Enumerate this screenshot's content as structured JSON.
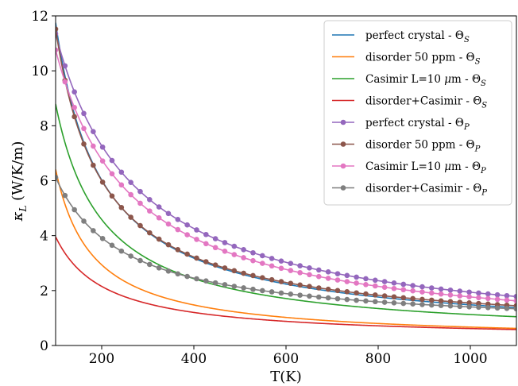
{
  "chart_data": {
    "type": "line",
    "xlabel": "T(K)",
    "ylabel": "κ",
    "ylabel_sub": "L",
    "ylabel_units": " (W/K/m)",
    "xlim": [
      100,
      1100
    ],
    "ylim": [
      0,
      12
    ],
    "xticks": [
      "200",
      "400",
      "600",
      "800",
      "1000"
    ],
    "yticks": [
      "0",
      "2",
      "4",
      "6",
      "8",
      "10",
      "12"
    ],
    "legend_position": "top-right",
    "series": [
      {
        "name": "perfect crystal - ",
        "symbol": "Θ",
        "sub": "S",
        "color": "#1f77b4",
        "markers": false,
        "A": 1130,
        "B": -0.9,
        "C": 0.35
      },
      {
        "name": "disorder 50 ppm - ",
        "symbol": "Θ",
        "sub": "S",
        "color": "#ff7f0e",
        "markers": false,
        "A": 500,
        "B": -20,
        "C": 0.16
      },
      {
        "name": "Casimir L=10 ",
        "mu": "μ",
        "name_tail": "m - ",
        "symbol": "Θ",
        "sub": "S",
        "color": "#2ca02c",
        "markers": false,
        "A": 880,
        "B": 3,
        "C": 0.25
      },
      {
        "name": "disorder+Casimir - ",
        "symbol": "Θ",
        "sub": "S",
        "color": "#d62728",
        "markers": false,
        "A": 400,
        "B": 7,
        "C": 0.22
      },
      {
        "name": "perfect crystal - ",
        "symbol": "Θ",
        "sub": "P",
        "color": "#9467bd",
        "markers": true,
        "A": 1980,
        "B": 76,
        "C": 0.1
      },
      {
        "name": "disorder 50 ppm - ",
        "symbol": "Θ",
        "sub": "P",
        "color": "#8c564b",
        "markers": true,
        "A": 1120,
        "B": 1,
        "C": 0.43
      },
      {
        "name": "Casimir L=10 ",
        "mu": "μ",
        "name_tail": "m - ",
        "symbol": "Θ",
        "sub": "P",
        "color": "#e377c2",
        "markers": true,
        "A": 1780,
        "B": 67,
        "C": 0.1
      },
      {
        "name": "disorder+Casimir - ",
        "symbol": "Θ",
        "sub": "P",
        "color": "#7f7f7f",
        "markers": true,
        "A": 825,
        "B": 50,
        "C": 0.62
      }
    ],
    "x_marker_start": 100,
    "x_marker_step": 20.4
  }
}
